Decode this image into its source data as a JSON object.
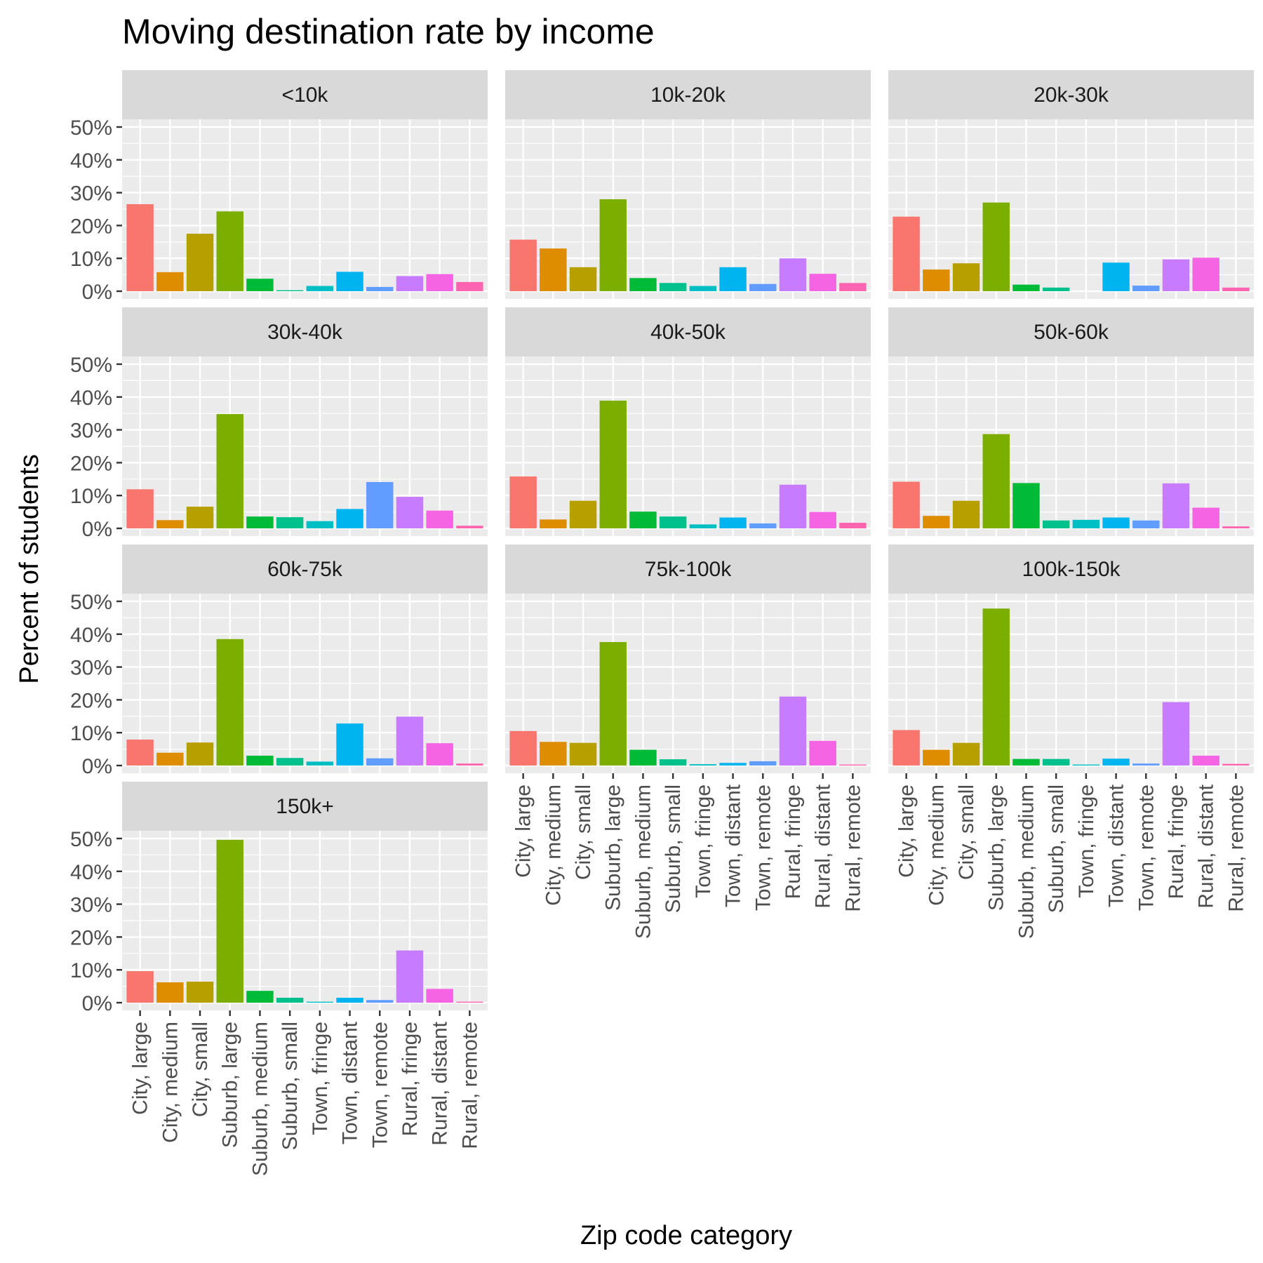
{
  "chart_data": {
    "type": "bar",
    "title": "Moving destination rate by income",
    "xlabel": "Zip code category",
    "ylabel": "Percent of students",
    "ylim": [
      0,
      50
    ],
    "yticks": [
      0,
      10,
      20,
      30,
      40,
      50
    ],
    "ytick_labels": [
      "0%",
      "10%",
      "20%",
      "30%",
      "40%",
      "50%"
    ],
    "grid": true,
    "legend": "none",
    "categories": [
      "City, large",
      "City, medium",
      "City, small",
      "Suburb, large",
      "Suburb, medium",
      "Suburb, small",
      "Town, fringe",
      "Town, distant",
      "Town, remote",
      "Rural, fringe",
      "Rural, distant",
      "Rural, remote"
    ],
    "colors": [
      "#F8766D",
      "#DE8C00",
      "#B79F00",
      "#7CAE00",
      "#00BA38",
      "#00C08B",
      "#00BFC4",
      "#00B4F0",
      "#619CFF",
      "#C77CFF",
      "#F564E3",
      "#FF64B0"
    ],
    "panels": [
      {
        "label": "<10k",
        "values": [
          26.5,
          5.8,
          17.5,
          24.3,
          3.8,
          0.3,
          1.6,
          5.9,
          1.3,
          4.6,
          5.2,
          2.8
        ]
      },
      {
        "label": "10k-20k",
        "values": [
          15.7,
          13.0,
          7.3,
          28.0,
          4.0,
          2.5,
          1.6,
          7.3,
          2.2,
          10.0,
          5.3,
          2.5
        ]
      },
      {
        "label": "20k-30k",
        "values": [
          22.7,
          6.6,
          8.5,
          27.0,
          2.0,
          1.1,
          0.0,
          8.7,
          1.7,
          9.7,
          10.2,
          1.1
        ]
      },
      {
        "label": "30k-40k",
        "values": [
          11.9,
          2.5,
          6.6,
          34.8,
          3.6,
          3.4,
          2.2,
          5.9,
          14.1,
          9.6,
          5.4,
          0.8
        ]
      },
      {
        "label": "40k-50k",
        "values": [
          15.8,
          2.7,
          8.4,
          38.9,
          5.1,
          3.6,
          1.2,
          3.3,
          1.5,
          13.3,
          5.0,
          1.7
        ]
      },
      {
        "label": "50k-60k",
        "values": [
          14.2,
          3.8,
          8.4,
          28.7,
          13.8,
          2.4,
          2.6,
          3.3,
          2.4,
          13.7,
          6.3,
          0.6
        ]
      },
      {
        "label": "60k-75k",
        "values": [
          7.9,
          3.9,
          7.0,
          38.5,
          3.0,
          2.3,
          1.2,
          12.8,
          2.2,
          14.9,
          6.8,
          0.6
        ]
      },
      {
        "label": "75k-100k",
        "values": [
          10.5,
          7.2,
          6.9,
          37.6,
          4.8,
          1.9,
          0.4,
          0.8,
          1.3,
          21.0,
          7.5,
          0.3
        ]
      },
      {
        "label": "100k-150k",
        "values": [
          10.8,
          4.8,
          6.9,
          47.8,
          2.0,
          2.0,
          0.3,
          2.1,
          0.6,
          19.3,
          3.0,
          0.5
        ]
      },
      {
        "label": "150k+",
        "values": [
          9.6,
          6.2,
          6.4,
          49.6,
          3.6,
          1.5,
          0.3,
          1.5,
          0.8,
          15.9,
          4.2,
          0.3
        ]
      }
    ]
  }
}
